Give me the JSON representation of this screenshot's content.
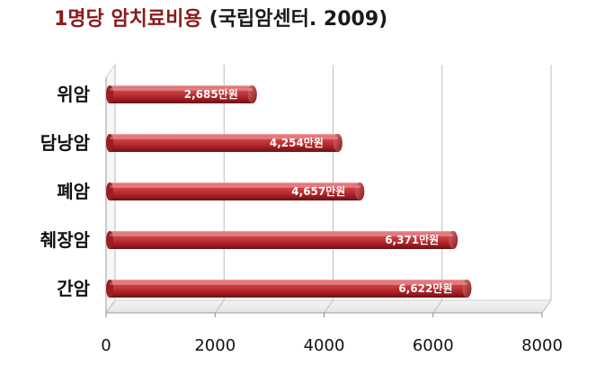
{
  "title": {
    "main": "1명당 암치료비용",
    "sub": "(국립암센터. 2009)"
  },
  "chart_data": {
    "type": "bar",
    "orientation": "horizontal",
    "categories": [
      "위암",
      "담낭암",
      "폐암",
      "췌장암",
      "간암"
    ],
    "values": [
      2685,
      4254,
      4657,
      6371,
      6622
    ],
    "data_labels": [
      "2,685만원",
      "4,254만원",
      "4,657만원",
      "6,371만원",
      "6,622만원"
    ],
    "xticks": [
      "0",
      "2000",
      "4000",
      "6000",
      "8000"
    ],
    "xlim": [
      0,
      8000
    ],
    "grid": true,
    "bar_color": "#c8383c",
    "bar_style": "3d-cylinder"
  }
}
